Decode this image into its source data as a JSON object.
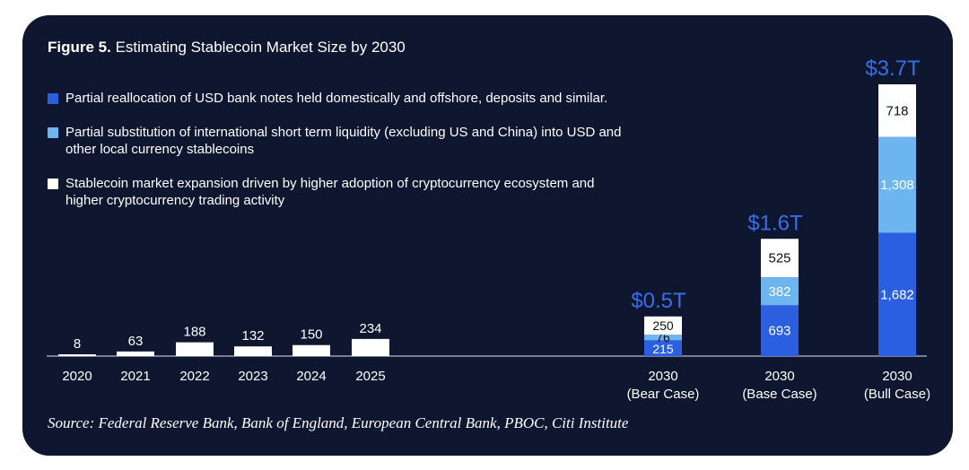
{
  "chart_data": {
    "type": "bar",
    "title_prefix": "Figure 5.",
    "title": "Estimating Stablecoin Market Size by 2030",
    "source": "Source: Federal Reserve Bank, Bank of England, European Central Bank, PBOC, Citi Institute",
    "unit": "$B",
    "legend_placement": "top-left",
    "grid": false,
    "colors": {
      "bank_notes": "#2b5fe0",
      "liquidity": "#6db5f0",
      "crypto": "#ffffff",
      "totals": "#3a6ee8",
      "background": "#0f1630"
    },
    "legend": [
      {
        "key": "bank_notes",
        "label": "Partial reallocation of USD bank notes held domestically and offshore, deposits and similar."
      },
      {
        "key": "liquidity",
        "label": "Partial substitution of international short term liquidity (excluding US and China) into USD and other local currency stablecoins"
      },
      {
        "key": "crypto",
        "label": "Stablecoin market expansion driven by higher adoption of cryptocurrency ecosystem and higher cryptocurrency trading activity"
      }
    ],
    "historical": {
      "categories": [
        "2020",
        "2021",
        "2022",
        "2023",
        "2024",
        "2025"
      ],
      "values": [
        8,
        63,
        188,
        132,
        150,
        234
      ]
    },
    "scenarios": [
      {
        "label_line1": "2030",
        "label_line2": "(Bear Case)",
        "total_label": "$0.5T",
        "bank_notes": 215,
        "liquidity": 76,
        "crypto": 250
      },
      {
        "label_line1": "2030",
        "label_line2": "(Base Case)",
        "total_label": "$1.6T",
        "bank_notes": 693,
        "liquidity": 382,
        "crypto": 525
      },
      {
        "label_line1": "2030",
        "label_line2": "(Bull Case)",
        "total_label": "$3.7T",
        "bank_notes": 1682,
        "liquidity": 1308,
        "crypto": 718
      }
    ]
  }
}
